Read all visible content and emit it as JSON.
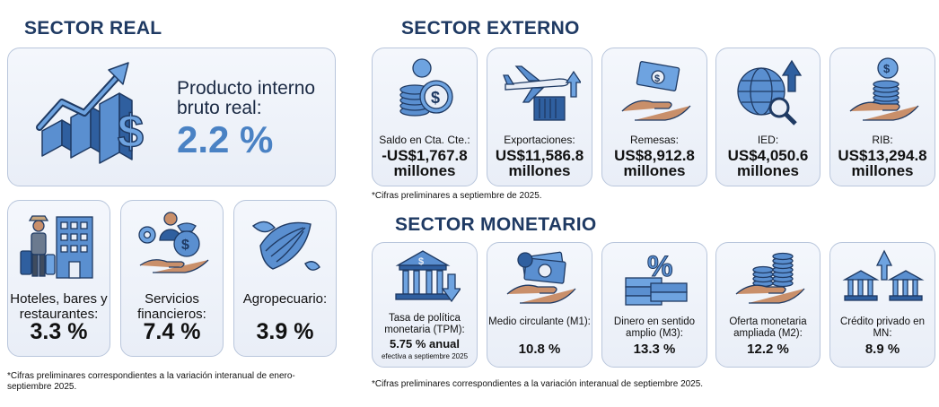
{
  "sector_real": {
    "title": "SECTOR REAL",
    "gdp": {
      "label": "Producto interno bruto real:",
      "value": "2.2 %",
      "icon": "growth-chart-dollar-icon"
    },
    "cards": [
      {
        "label": "Hoteles, bares y restaurantes:",
        "value": "3.3 %",
        "icon": "hotel-traveler-icon"
      },
      {
        "label": "Servicios financieros:",
        "value": "7.4 %",
        "icon": "financial-services-icon"
      },
      {
        "label": "Agropecuario:",
        "value": "3.9 %",
        "icon": "cacao-pod-icon"
      }
    ],
    "note": "*Cifras preliminares correspondientes a la variación interanual de enero-septiembre 2025."
  },
  "sector_externo": {
    "title": "SECTOR EXTERNO",
    "cards": [
      {
        "label": "Saldo en Cta. Cte.:",
        "value": "-US$1,767.8",
        "unit": "millones",
        "icon": "coins-stack-icon"
      },
      {
        "label": "Exportaciones:",
        "value": "US$11,586.8",
        "unit": "millones",
        "icon": "airplane-container-icon"
      },
      {
        "label": "Remesas:",
        "value": "US$8,912.8",
        "unit": "millones",
        "icon": "hand-banknote-icon"
      },
      {
        "label": "IED:",
        "value": "US$4,050.6",
        "unit": "millones",
        "icon": "globe-magnifier-icon"
      },
      {
        "label": "RIB:",
        "value": "US$13,294.8",
        "unit": "millones",
        "icon": "hand-coins-icon"
      }
    ],
    "note": "*Cifras preliminares a septiembre de 2025."
  },
  "sector_monetario": {
    "title": "SECTOR MONETARIO",
    "cards": [
      {
        "label": "Tasa de política monetaria (TPM):",
        "value": "5.75 % anual",
        "sub": "efectiva a septiembre 2025",
        "icon": "bank-down-arrow-icon"
      },
      {
        "label": "Medio circulante (M1):",
        "value": "10.8 %",
        "icon": "hand-cash-icon"
      },
      {
        "label": "Dinero en sentido amplio (M3):",
        "value": "13.3 %",
        "icon": "percent-money-icon"
      },
      {
        "label": "Oferta monetaria ampliada (M2):",
        "value": "12.2 %",
        "icon": "hand-coin-stacks-icon"
      },
      {
        "label": "Crédito privado en MN:",
        "value": "8.9 %",
        "icon": "banks-up-arrow-icon"
      }
    ],
    "note": "*Cifras preliminares correspondientes a la variación interanual de septiembre 2025."
  },
  "colors": {
    "title": "#1f3a63",
    "accent": "#4a82c4",
    "card_border": "#b9c6dc"
  }
}
